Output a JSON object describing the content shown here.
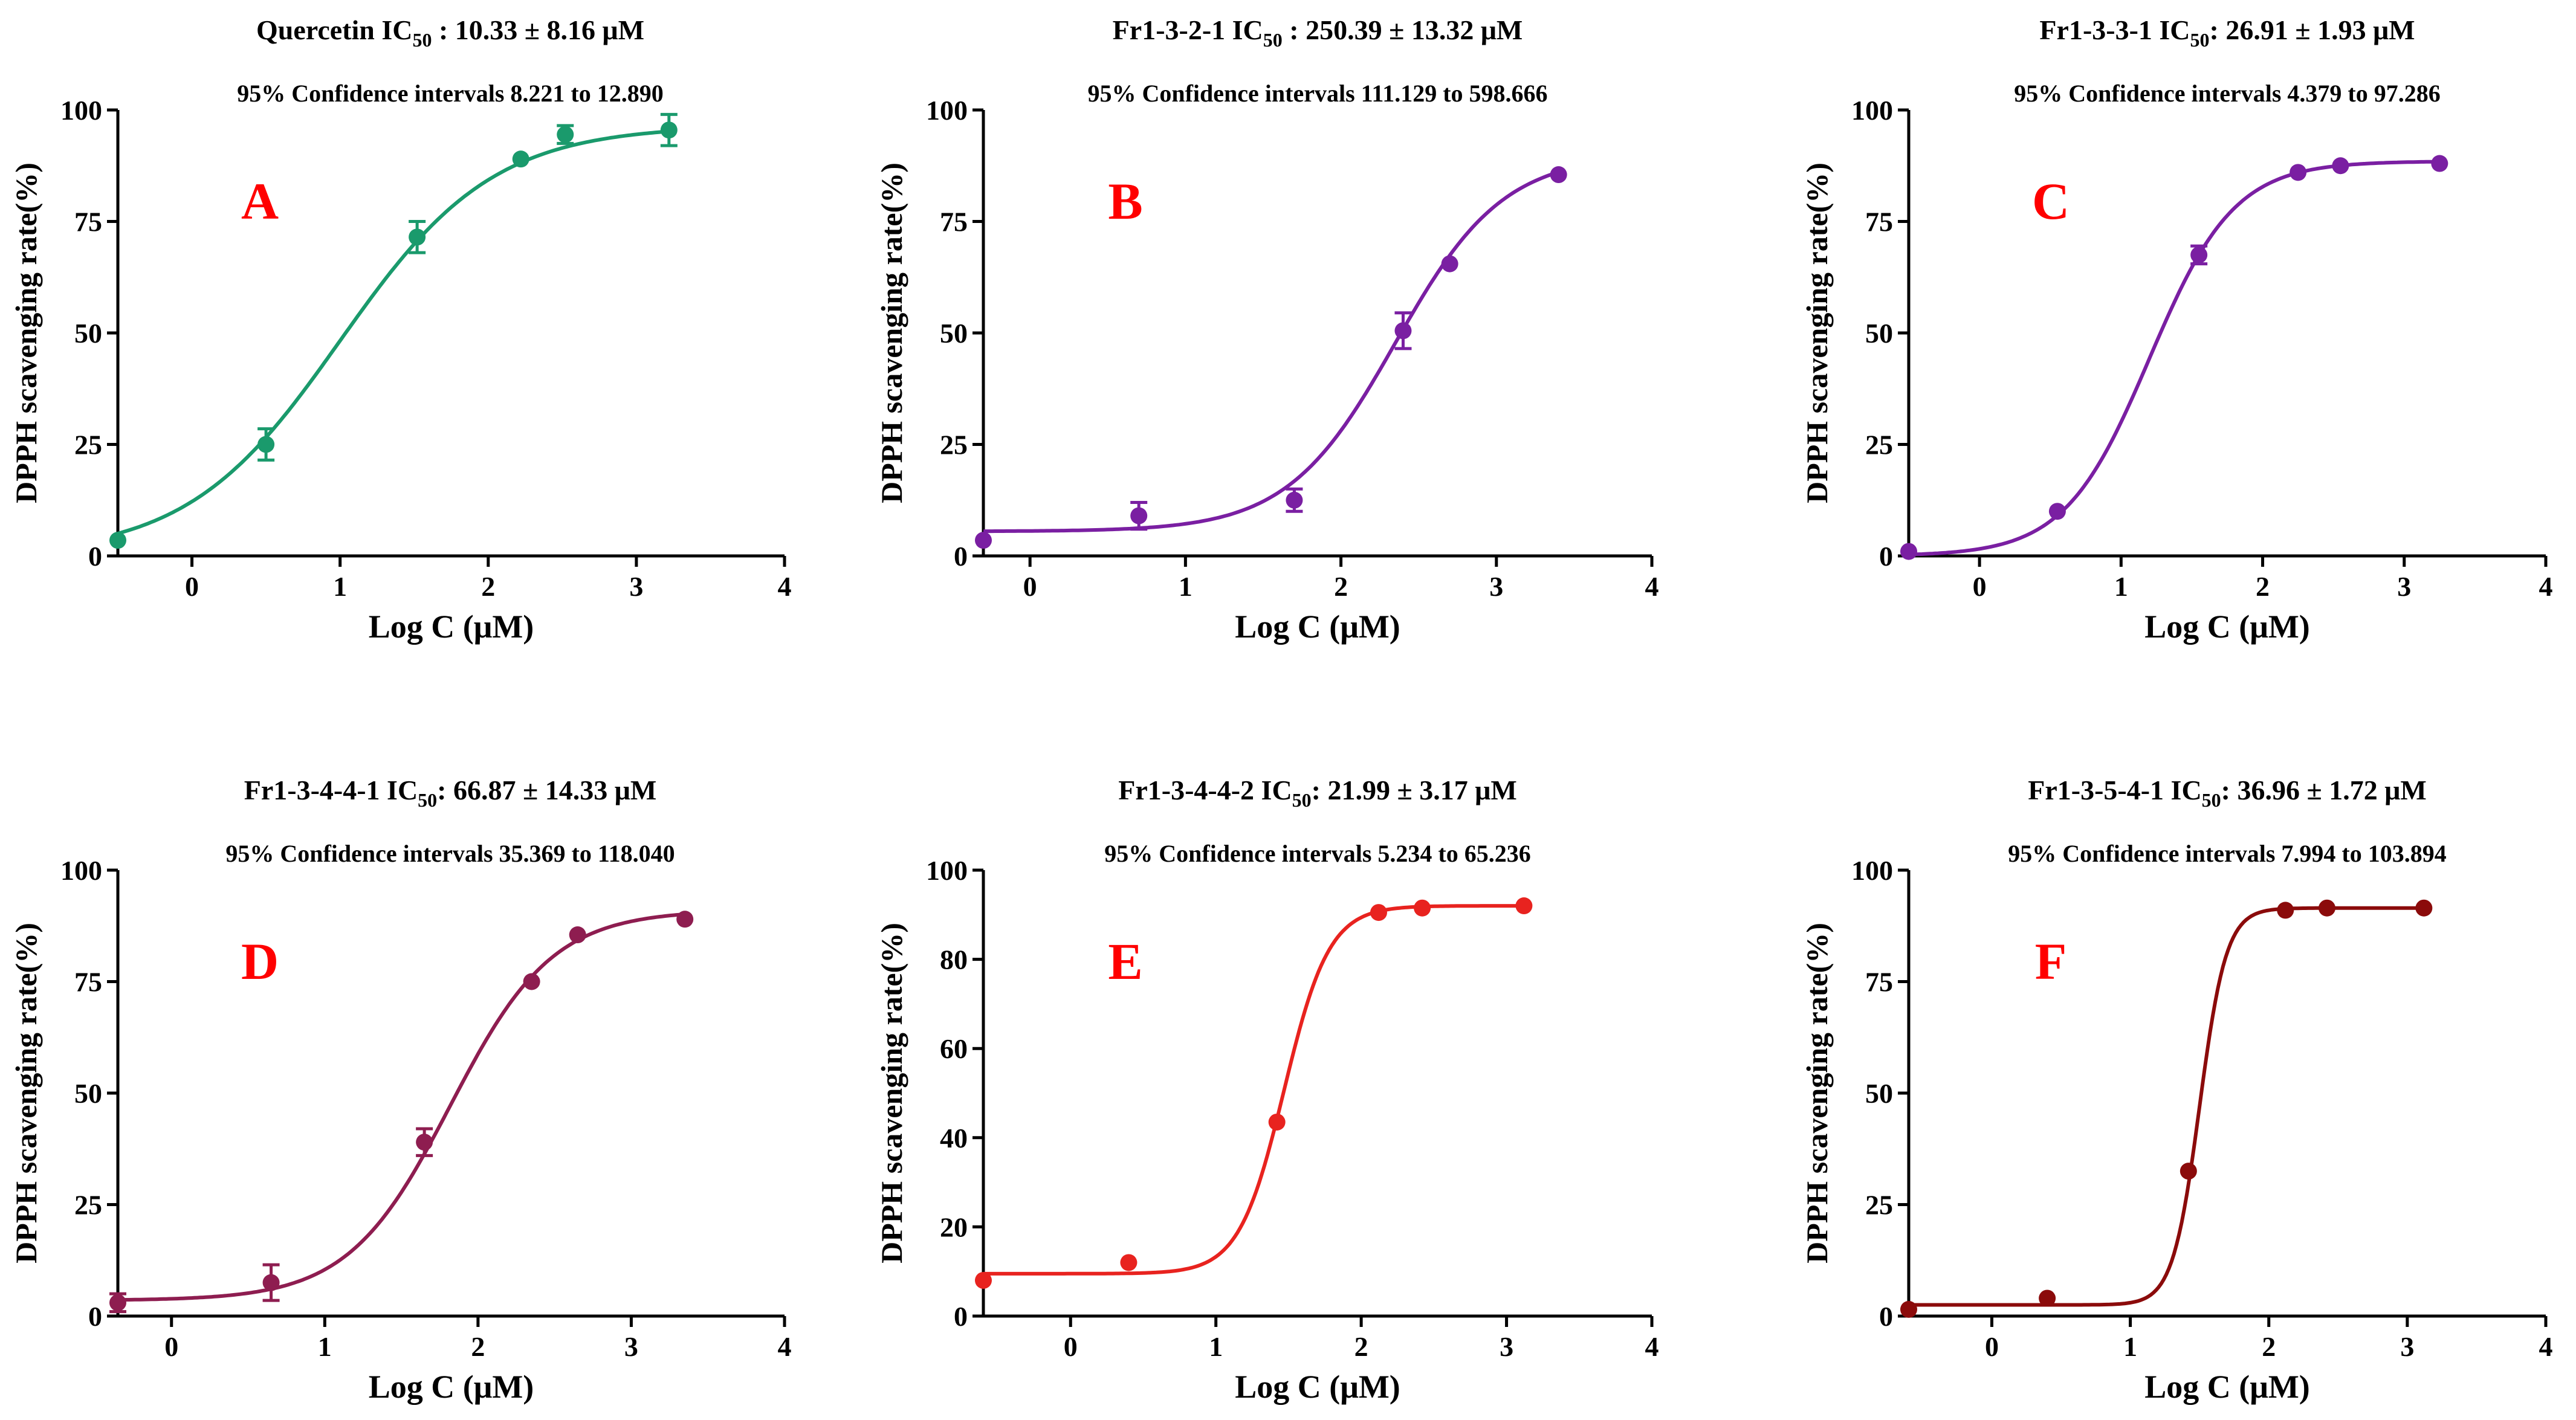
{
  "colors": {
    "A": "#1a9a6c",
    "B": "#7a1fa2",
    "C": "#7a1fa2",
    "D": "#8e1d50",
    "E": "#e8231f",
    "F": "#8b0b0b",
    "letter": "#ff0000"
  },
  "chart_data": [
    {
      "id": "A",
      "type": "scatter",
      "title_prefix": "Quercetin  IC",
      "title_sub": "50",
      "title_suffix": " : 10.33 ± 8.16 μM",
      "ci_text": "95% Confidence intervals 8.221  to 12.890",
      "letter": "A",
      "xlabel": "Log C (μM)",
      "ylabel": "DPPH scavenging rate(%)",
      "xlim": [
        -0.5,
        4
      ],
      "ylim": [
        0,
        100
      ],
      "xticks": [
        "0",
        "1",
        "2",
        "3",
        "4"
      ],
      "yticks": [
        "0",
        "25",
        "50",
        "75",
        "100"
      ],
      "x": [
        -0.5,
        0.5,
        1.52,
        2.22,
        2.52,
        3.22
      ],
      "y": [
        3.5,
        25,
        71.5,
        89,
        94.5,
        95.5
      ],
      "err": [
        0,
        3.5,
        3.5,
        0,
        2,
        3.5
      ],
      "fit": {
        "bottom": 0,
        "top": 96.5,
        "logec50": 1.0,
        "hill": 0.84
      }
    },
    {
      "id": "B",
      "type": "scatter",
      "title_prefix": "Fr1-3-2-1  IC",
      "title_sub": "50",
      "title_suffix": " : 250.39 ± 13.32 μM",
      "ci_text": "95% Confidence intervals 111.129 to 598.666",
      "letter": "B",
      "xlabel": "Log C (μM)",
      "ylabel": "DPPH scavenging rate(%)",
      "xlim": [
        -0.3,
        4
      ],
      "ylim": [
        0,
        100
      ],
      "xticks": [
        "0",
        "1",
        "2",
        "3",
        "4"
      ],
      "yticks": [
        "0",
        "25",
        "50",
        "75",
        "100"
      ],
      "x": [
        -0.3,
        0.7,
        1.7,
        2.4,
        2.7,
        3.4
      ],
      "y": [
        3.5,
        9,
        12.5,
        50.5,
        65.5,
        85.5
      ],
      "err": [
        0,
        3,
        2.5,
        4,
        0,
        0
      ],
      "fit": {
        "bottom": 5.5,
        "top": 90,
        "logec50": 2.35,
        "hill": 1.25
      }
    },
    {
      "id": "C",
      "type": "scatter",
      "title_prefix": "Fr1-3-3-1  IC",
      "title_sub": "50",
      "title_suffix": ": 26.91 ± 1.93 μM",
      "ci_text": "95% Confidence intervals 4.379 to 97.286",
      "letter": "C",
      "xlabel": "Log C (μM)",
      "ylabel": "DPPH scavenging rate(%)",
      "xlim": [
        -0.5,
        4
      ],
      "ylim": [
        0,
        100
      ],
      "xticks": [
        "0",
        "1",
        "2",
        "3",
        "4"
      ],
      "yticks": [
        "0",
        "25",
        "50",
        "75",
        "100"
      ],
      "x": [
        -0.5,
        0.55,
        1.55,
        2.25,
        2.55,
        3.25
      ],
      "y": [
        1,
        10,
        67.5,
        86,
        87.5,
        88
      ],
      "err": [
        0,
        0,
        2,
        0,
        0,
        0
      ],
      "fit": {
        "bottom": 0,
        "top": 88.5,
        "logec50": 1.2,
        "hill": 1.45
      }
    },
    {
      "id": "D",
      "type": "scatter",
      "title_prefix": "Fr1-3-4-4-1  IC",
      "title_sub": "50",
      "title_suffix": ": 66.87 ± 14.33 μM",
      "ci_text": "95% Confidence intervals 35.369 to 118.040",
      "letter": "D",
      "xlabel": "Log C (μM)",
      "ylabel": "DPPH scavenging rate(%)",
      "xlim": [
        -0.35,
        4
      ],
      "ylim": [
        0,
        100
      ],
      "xticks": [
        "0",
        "1",
        "2",
        "3",
        "4"
      ],
      "yticks": [
        "0",
        "25",
        "50",
        "75",
        "100"
      ],
      "x": [
        -0.35,
        0.65,
        1.65,
        2.35,
        2.65,
        3.35
      ],
      "y": [
        3,
        7.5,
        39,
        75,
        85.5,
        89
      ],
      "err": [
        2,
        4,
        3,
        0,
        0,
        0
      ],
      "fit": {
        "bottom": 3.5,
        "top": 91,
        "logec50": 1.82,
        "hill": 1.3
      }
    },
    {
      "id": "E",
      "type": "scatter",
      "title_prefix": "Fr1-3-4-4-2  IC",
      "title_sub": "50",
      "title_suffix": ": 21.99 ± 3.17 μM",
      "ci_text": "95% Confidence intervals 5.234 to 65.236",
      "letter": "E",
      "xlabel": "Log C (μM)",
      "ylabel": "DPPH scavenging rate(%)",
      "xlim": [
        -0.6,
        4
      ],
      "ylim": [
        0,
        100
      ],
      "xticks": [
        "0",
        "1",
        "2",
        "3",
        "4"
      ],
      "yticks": [
        "0",
        "20",
        "40",
        "60",
        "80",
        "100"
      ],
      "x": [
        -0.6,
        0.4,
        1.42,
        2.12,
        2.42,
        3.12
      ],
      "y": [
        8,
        12,
        43.5,
        90.5,
        91.5,
        92
      ],
      "err": [
        0,
        0,
        0,
        0,
        0,
        0
      ],
      "fit": {
        "bottom": 9.5,
        "top": 92,
        "logec50": 1.47,
        "hill": 2.8
      }
    },
    {
      "id": "F",
      "type": "scatter",
      "title_prefix": "Fr1-3-5-4-1  IC",
      "title_sub": "50",
      "title_suffix": ": 36.96 ± 1.72 μM",
      "ci_text": "95% Confidence intervals 7.994 to 103.894",
      "letter": "F",
      "xlabel": "Log C (μM)",
      "ylabel": "DPPH scavenging rate(%)",
      "xlim": [
        -0.6,
        4
      ],
      "ylim": [
        0,
        100
      ],
      "xticks": [
        "0",
        "1",
        "2",
        "3",
        "4"
      ],
      "yticks": [
        "0",
        "25",
        "50",
        "75",
        "100"
      ],
      "x": [
        -0.6,
        0.4,
        1.42,
        2.12,
        2.42,
        3.12
      ],
      "y": [
        1.5,
        4,
        32.5,
        91,
        91.5,
        91.5
      ],
      "err": [
        0,
        0,
        0,
        0,
        0,
        0
      ],
      "fit": {
        "bottom": 2.5,
        "top": 91.5,
        "logec50": 1.5,
        "hill": 4.5
      }
    }
  ]
}
